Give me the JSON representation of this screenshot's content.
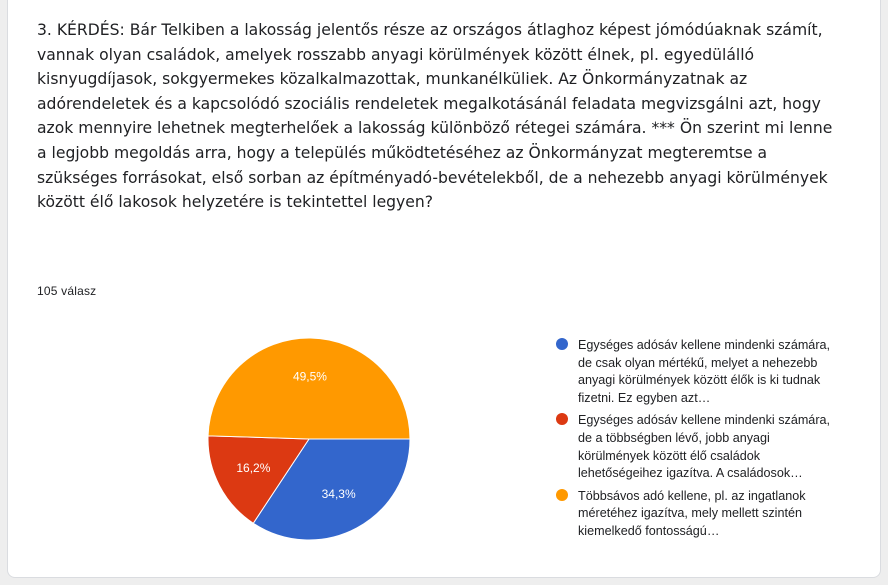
{
  "question": {
    "title": "3. KÉRDÉS: Bár Telkiben a lakosság jelentős része az országos átlaghoz képest jómódúaknak számít, vannak olyan családok, amelyek rosszabb anyagi körülmények között élnek, pl. egyedülálló kisnyugdíjasok, sokgyermekes közalkalmazottak, munkanélküliek. Az Önkormányzatnak az adórendeletek és a kapcsolódó szociális rendeletek megalkotásánál feladata megvizsgálni azt, hogy azok mennyire lehetnek megterhelőek a lakosság különböző rétegei számára. *** Ön szerint mi lenne a legjobb megoldás arra, hogy a település működtetéséhez az Önkormányzat megteremtse a szükséges forrásokat, első sorban az építményadó-bevételekből, de a nehezebb anyagi körülmények között élő lakosok helyzetére is tekintettel legyen?",
    "response_count": "105 válasz"
  },
  "chart_data": {
    "type": "pie",
    "title": "",
    "slices": [
      {
        "label": "Egységes adósáv kellene mindenki számára, de csak olyan mértékű, melyet a nehezebb anyagi körülmények között élők is ki tudnak fizetni. Ez egyben azt…",
        "value": 34.3,
        "display": "34,3%",
        "color": "#3366cc"
      },
      {
        "label": "Egységes adósáv kellene mindenki számára, de a többségben lévő, jobb anyagi körülmények között élő családok lehetőségeihez igazítva. A családosok…",
        "value": 16.2,
        "display": "16,2%",
        "color": "#dc3912"
      },
      {
        "label": "Többsávos adó kellene, pl. az ingatlanok méretéhez igazítva, mely mellett szintén kiemelkedő fontosságú…",
        "value": 49.5,
        "display": "49,5%",
        "color": "#ff9900"
      }
    ],
    "start_angle_deg": 90,
    "direction": "clockwise",
    "legend_position": "right"
  }
}
